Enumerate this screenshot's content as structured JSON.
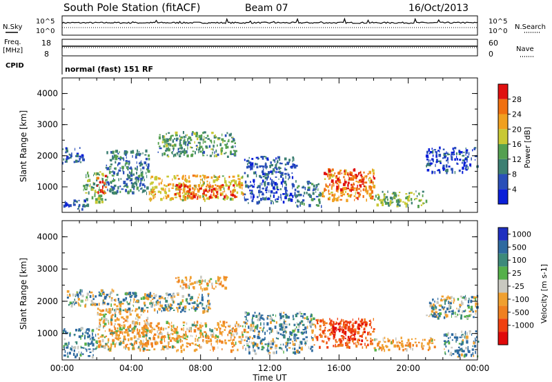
{
  "header": {
    "station": "South Pole Station (fitACF)",
    "beam": "Beam 07",
    "date": "16/Oct/2013"
  },
  "top_panels": {
    "nsky_label": "N.Sky",
    "nsearch_label": "N.Search",
    "freq_label_1": "Freq.",
    "freq_label_2": "[MHz]",
    "nave_label": "Nave",
    "cpid_label": "CPID",
    "cpid_value": "normal (fast) 151 RF",
    "noise_ticks_left": [
      "10^5",
      "10^0"
    ],
    "noise_ticks_right": [
      "10^5",
      "10^0"
    ],
    "freq_ticks": [
      "18",
      "8"
    ],
    "nave_ticks": [
      "60",
      "0"
    ]
  },
  "colors": {
    "power_scale": [
      "#0a1fd8",
      "#2a4fb8",
      "#3c7f72",
      "#55a050",
      "#c8c834",
      "#f0a020",
      "#f07010",
      "#e01010"
    ],
    "velocity_scale": [
      "#1f2fc0",
      "#2e6aa0",
      "#3d8a7a",
      "#55b04a",
      "#c8c8c0",
      "#f0a030",
      "#f08020",
      "#f04010",
      "#e00a0a"
    ]
  },
  "chart_data": [
    {
      "type": "heatmap",
      "name": "power",
      "ylabel": "Slant Range [km]",
      "xlabel": "",
      "ylim": [
        180,
        4500
      ],
      "yticks": [
        1000,
        2000,
        3000,
        4000
      ],
      "xlim": [
        0,
        24
      ],
      "colorbar_label": "Power [dB]",
      "colorbar_ticks": [
        "4",
        "8",
        "12",
        "16",
        "20",
        "24",
        "28"
      ],
      "colorbar_range": [
        0,
        32
      ],
      "echo_regions": [
        {
          "t0": 0.0,
          "t1": 1.2,
          "r0": 1800,
          "r1": 2300,
          "value": 5
        },
        {
          "t0": 0.0,
          "t1": 1.5,
          "r0": 300,
          "r1": 600,
          "value": 6
        },
        {
          "t0": 1.2,
          "t1": 2.5,
          "r0": 500,
          "r1": 1500,
          "value": 14
        },
        {
          "t0": 2.0,
          "t1": 2.5,
          "r0": 800,
          "r1": 1400,
          "value": 27
        },
        {
          "t0": 2.5,
          "t1": 5.0,
          "r0": 800,
          "r1": 2200,
          "value": 9
        },
        {
          "t0": 5.0,
          "t1": 10.5,
          "r0": 600,
          "r1": 1400,
          "value": 20
        },
        {
          "t0": 6.5,
          "t1": 10.0,
          "r0": 700,
          "r1": 1100,
          "value": 28
        },
        {
          "t0": 5.5,
          "t1": 10.0,
          "r0": 2000,
          "r1": 2800,
          "value": 12
        },
        {
          "t0": 10.5,
          "t1": 13.5,
          "r0": 500,
          "r1": 2000,
          "value": 6
        },
        {
          "t0": 13.5,
          "t1": 15.0,
          "r0": 400,
          "r1": 1200,
          "value": 10
        },
        {
          "t0": 15.0,
          "t1": 18.0,
          "r0": 600,
          "r1": 1600,
          "value": 24
        },
        {
          "t0": 15.8,
          "t1": 17.5,
          "r0": 900,
          "r1": 1500,
          "value": 29
        },
        {
          "t0": 18.0,
          "t1": 21.0,
          "r0": 400,
          "r1": 900,
          "value": 15
        },
        {
          "t0": 21.0,
          "t1": 24.0,
          "r0": 1500,
          "r1": 2300,
          "value": 5
        }
      ]
    },
    {
      "type": "heatmap",
      "name": "velocity",
      "ylabel": "Slant Range [km]",
      "xlabel": "Time UT",
      "ylim": [
        180,
        4500
      ],
      "yticks": [
        1000,
        2000,
        3000,
        4000
      ],
      "xlim": [
        0,
        24
      ],
      "xticks": [
        "00:00",
        "04:00",
        "08:00",
        "12:00",
        "16:00",
        "20:00",
        "00:00"
      ],
      "colorbar_label": "Velocity [m s-1]",
      "colorbar_ticks": [
        "1000",
        "500",
        "100",
        "25",
        "-25",
        "-100",
        "-500",
        "-1000"
      ],
      "echo_regions": [
        {
          "t0": 0.0,
          "t1": 3.0,
          "r0": 1900,
          "r1": 2400,
          "value": 0
        },
        {
          "t0": 0.0,
          "t1": 2.0,
          "r0": 300,
          "r1": 1200,
          "value": 150
        },
        {
          "t0": 2.0,
          "t1": 5.0,
          "r0": 500,
          "r1": 1800,
          "value": -150
        },
        {
          "t0": 3.0,
          "t1": 8.5,
          "r0": 1700,
          "r1": 2300,
          "value": 0
        },
        {
          "t0": 4.0,
          "t1": 10.5,
          "r0": 500,
          "r1": 1400,
          "value": -200
        },
        {
          "t0": 6.5,
          "t1": 9.5,
          "r0": 2400,
          "r1": 2800,
          "value": -200
        },
        {
          "t0": 10.5,
          "t1": 14.5,
          "r0": 400,
          "r1": 1700,
          "value": 80
        },
        {
          "t0": 14.5,
          "t1": 18.0,
          "r0": 600,
          "r1": 1500,
          "value": -700
        },
        {
          "t0": 15.5,
          "t1": 17.5,
          "r0": 800,
          "r1": 1400,
          "value": -1000
        },
        {
          "t0": 18.0,
          "t1": 21.5,
          "r0": 500,
          "r1": 900,
          "value": -250
        },
        {
          "t0": 21.0,
          "t1": 24.0,
          "r0": 1500,
          "r1": 2200,
          "value": 0
        },
        {
          "t0": 22.0,
          "t1": 24.0,
          "r0": 300,
          "r1": 1100,
          "value": 120
        }
      ]
    }
  ]
}
